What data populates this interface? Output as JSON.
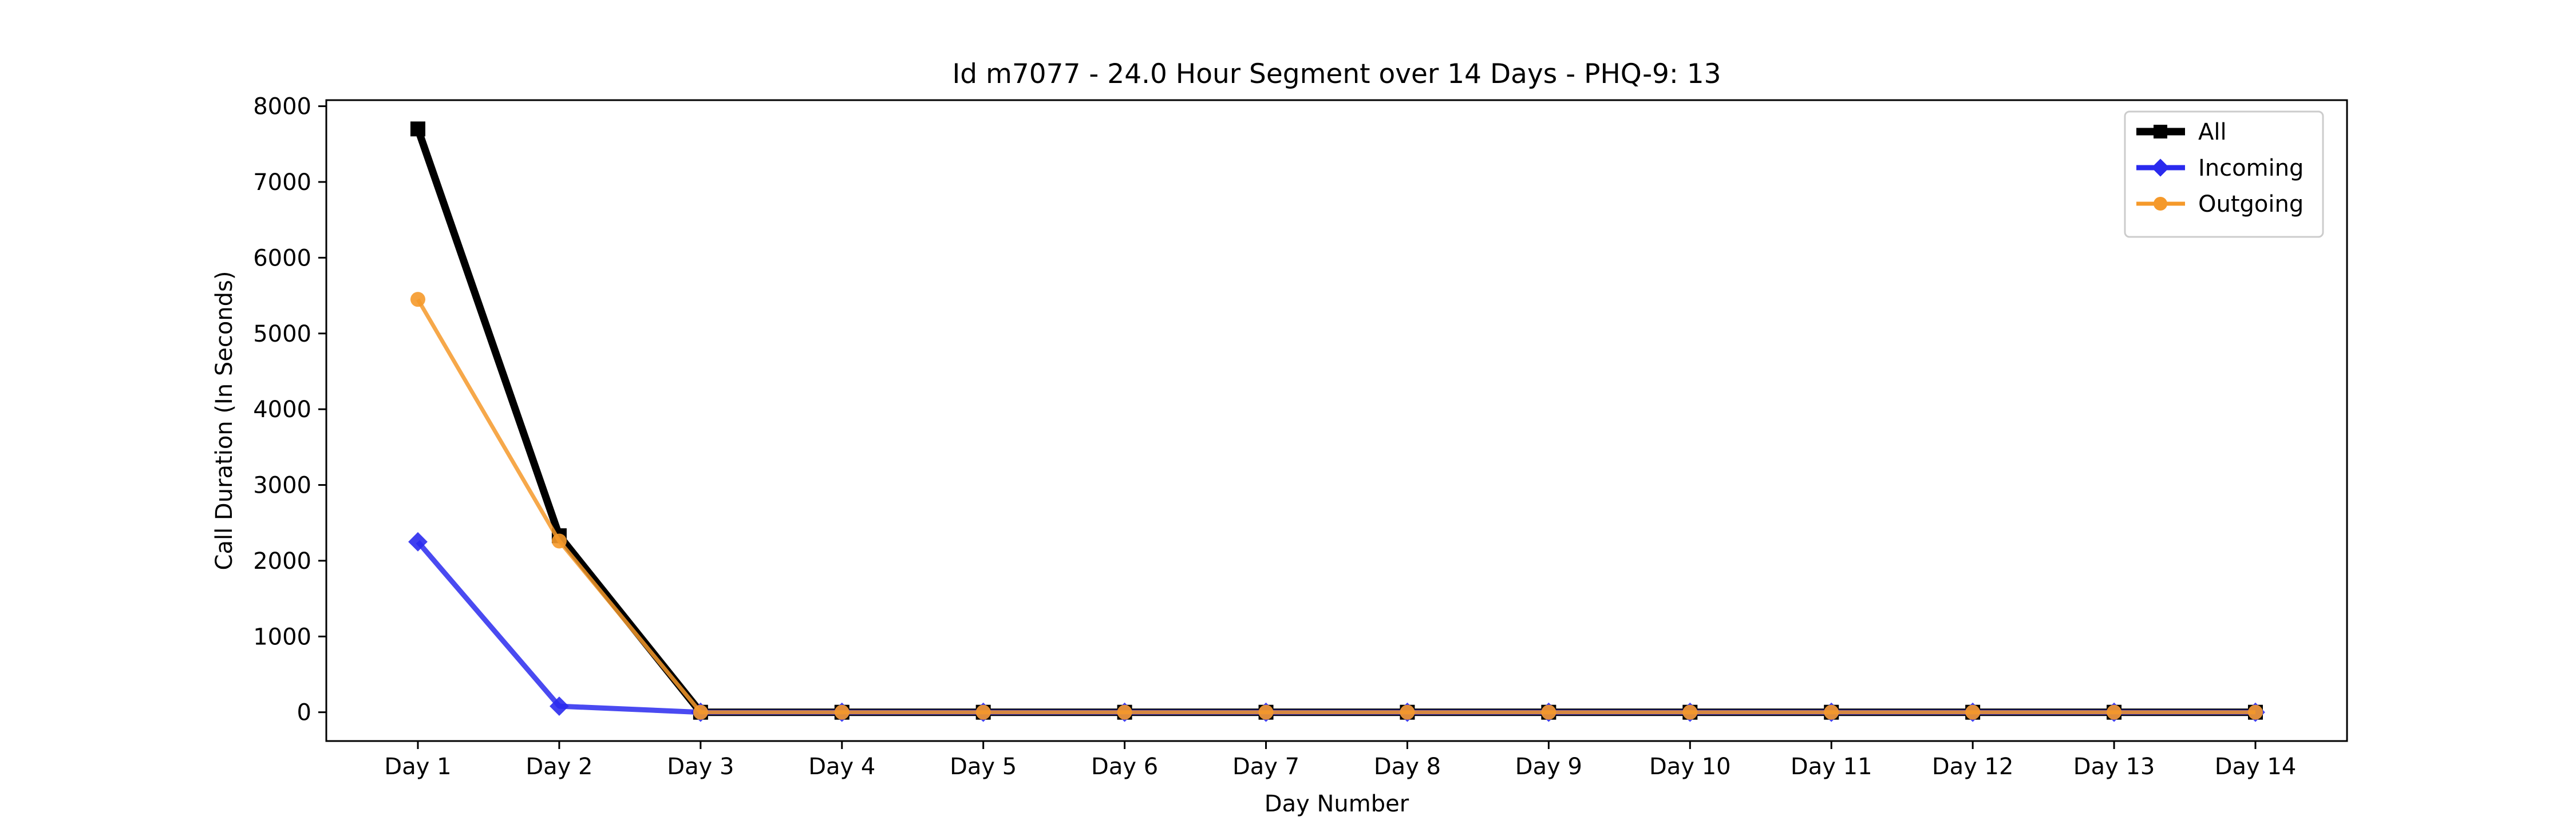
{
  "chart_data": {
    "type": "line",
    "title": "Id m7077 - 24.0 Hour Segment over 14 Days - PHQ-9: 13",
    "xlabel": "Day Number",
    "ylabel": "Call Duration (In Seconds)",
    "categories": [
      "Day 1",
      "Day 2",
      "Day 3",
      "Day 4",
      "Day 5",
      "Day 6",
      "Day 7",
      "Day 8",
      "Day 9",
      "Day 10",
      "Day 11",
      "Day 12",
      "Day 13",
      "Day 14"
    ],
    "ylim": [
      -380,
      8080
    ],
    "yticks": [
      0,
      1000,
      2000,
      3000,
      4000,
      5000,
      6000,
      7000,
      8000
    ],
    "grid": false,
    "legend_position": "top-right",
    "series": [
      {
        "name": "All",
        "color": "#000000",
        "marker": "square",
        "values": [
          7700,
          2330,
          0,
          0,
          0,
          0,
          0,
          0,
          0,
          0,
          0,
          0,
          0,
          0
        ]
      },
      {
        "name": "Incoming",
        "color": "#2a2aee",
        "marker": "diamond",
        "values": [
          2250,
          80,
          0,
          0,
          0,
          0,
          0,
          0,
          0,
          0,
          0,
          0,
          0,
          0
        ]
      },
      {
        "name": "Outgoing",
        "color": "#f5992a",
        "marker": "circle",
        "values": [
          5450,
          2260,
          0,
          0,
          0,
          0,
          0,
          0,
          0,
          0,
          0,
          0,
          0,
          0
        ]
      }
    ]
  }
}
